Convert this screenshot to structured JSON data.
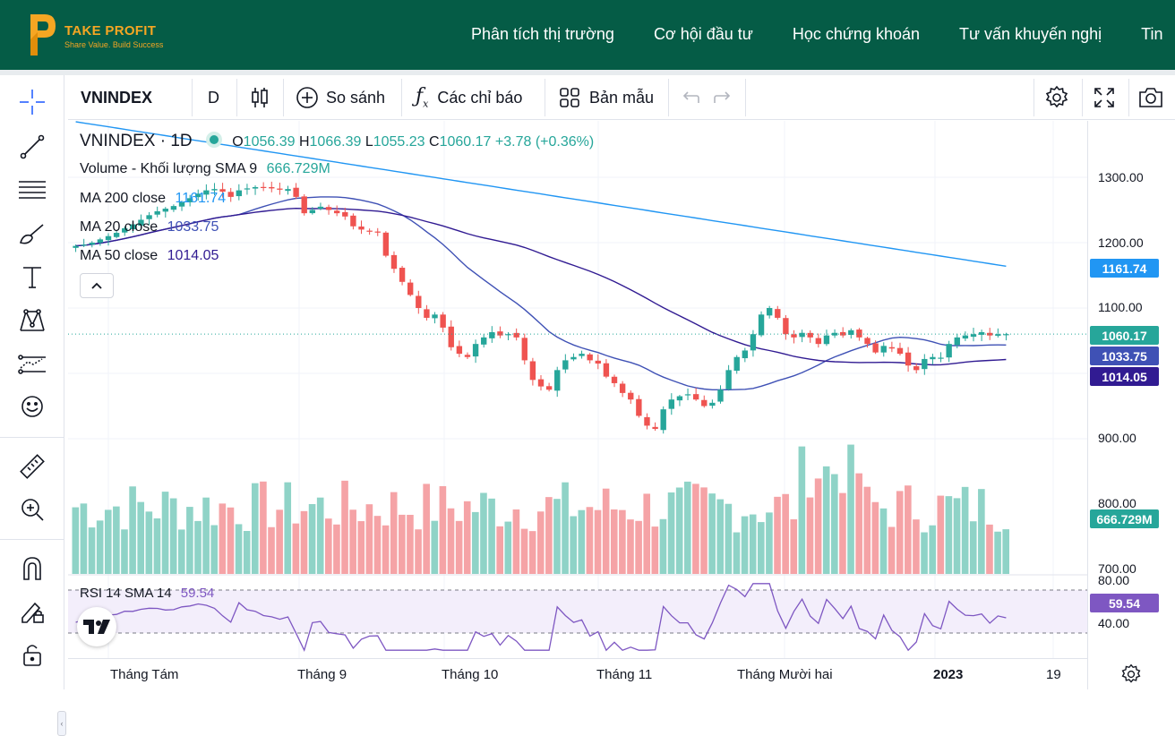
{
  "site": {
    "logo_name": "TAKE PROFIT",
    "logo_tagline": "Share Value. Build Success",
    "nav": [
      "Phân tích thị trường",
      "Cơ hội đầu tư",
      "Học chứng khoán",
      "Tư vấn khuyến nghị",
      "Tin"
    ]
  },
  "toolbar": {
    "symbol": "VNINDEX",
    "interval": "D",
    "compare_label": "So sánh",
    "indicators_label": "Các chỉ báo",
    "templates_label": "Bản mẫu"
  },
  "left_tools": [
    "crosshair-icon",
    "trendline-icon",
    "fib-icon",
    "brush-icon",
    "text-icon",
    "pattern-icon",
    "forecast-icon",
    "emoji-icon",
    "ruler-icon",
    "zoom-icon",
    "magnet-icon",
    "pencil-lock-icon",
    "lock-icon"
  ],
  "legend": {
    "symbol": "VNINDEX",
    "interval": "1D",
    "o_label": "O",
    "o": "1056.39",
    "h_label": "H",
    "h": "1066.39",
    "l_label": "L",
    "l": "1055.23",
    "c_label": "C",
    "c": "1060.17",
    "change": "+3.78 (+0.36%)",
    "volume_label": "Volume - Khối lượng SMA 9",
    "volume_value": "666.729M",
    "ma200_label": "MA 200 close",
    "ma200_value": "1161.74",
    "ma20_label": "MA 20 close",
    "ma20_value": "1033.75",
    "ma50_label": "MA 50 close",
    "ma50_value": "1014.05",
    "rsi_label": "RSI 14 SMA 14",
    "rsi_value": "59.54"
  },
  "price_axis": {
    "ticks": [
      "1300.00",
      "1200.00",
      "1100.00",
      "900.00",
      "800.00",
      "700.00"
    ],
    "badges": [
      {
        "label": "1161.74",
        "color": "#2196F3"
      },
      {
        "label": "1060.17",
        "color": "#26A69A"
      },
      {
        "label": "1033.75",
        "color": "#3F51B5"
      },
      {
        "label": "1014.05",
        "color": "#311B92"
      },
      {
        "label": "666.729M",
        "color": "#26A69A"
      }
    ],
    "rsi_ticks": [
      "80.00",
      "40.00"
    ],
    "rsi_badge": {
      "label": "59.54",
      "color": "#7E57C2"
    }
  },
  "time_axis": [
    "Tháng Tám",
    "Tháng 9",
    "Tháng 10",
    "Tháng 11",
    "Tháng Mười hai",
    "2023",
    "19"
  ],
  "colors": {
    "up": "#26A69A",
    "down": "#EF5350",
    "ma200": "#2196F3",
    "ma20": "#3F51B5",
    "ma50": "#311B92",
    "rsi": "#7E57C2",
    "header": "#055C46",
    "accent": "#F5A623"
  },
  "chart_data": {
    "type": "candlestick",
    "title": "VNINDEX",
    "interval": "1D",
    "x": [
      "Tháng Tám",
      "Tháng 9",
      "Tháng 10",
      "Tháng 11",
      "Tháng Mười hai",
      "2023",
      "19"
    ],
    "y_range": [
      650,
      1340
    ],
    "close_series": [
      1195,
      1197,
      1200,
      1205,
      1210,
      1215,
      1222,
      1228,
      1235,
      1242,
      1248,
      1252,
      1256,
      1262,
      1268,
      1275,
      1280,
      1282,
      1278,
      1270,
      1280,
      1283,
      1285,
      1284,
      1283,
      1281,
      1282,
      1270,
      1245,
      1250,
      1255,
      1250,
      1245,
      1240,
      1225,
      1220,
      1218,
      1216,
      1180,
      1160,
      1140,
      1120,
      1100,
      1085,
      1090,
      1070,
      1040,
      1030,
      1025,
      1045,
      1055,
      1063,
      1058,
      1060,
      1055,
      1020,
      990,
      980,
      975,
      1005,
      1020,
      1025,
      1030,
      1020,
      1015,
      995,
      985,
      970,
      960,
      935,
      920,
      915,
      945,
      960,
      965,
      968,
      960,
      950,
      955,
      975,
      1005,
      1025,
      1035,
      1060,
      1090,
      1100,
      1085,
      1060,
      1055,
      1062,
      1055,
      1045,
      1058,
      1062,
      1058,
      1066,
      1055,
      1045,
      1032,
      1042,
      1038,
      1030,
      1012,
      1005,
      1022,
      1025,
      1024,
      1045,
      1055,
      1058,
      1060,
      1063,
      1058,
      1060,
      1060
    ],
    "ma200_value": 1161.74,
    "ma20_value": 1033.75,
    "ma50_value": 1014.05,
    "volume_sma9": "666.729M",
    "rsi_value": 59.54,
    "rsi_levels": [
      80,
      40
    ]
  }
}
